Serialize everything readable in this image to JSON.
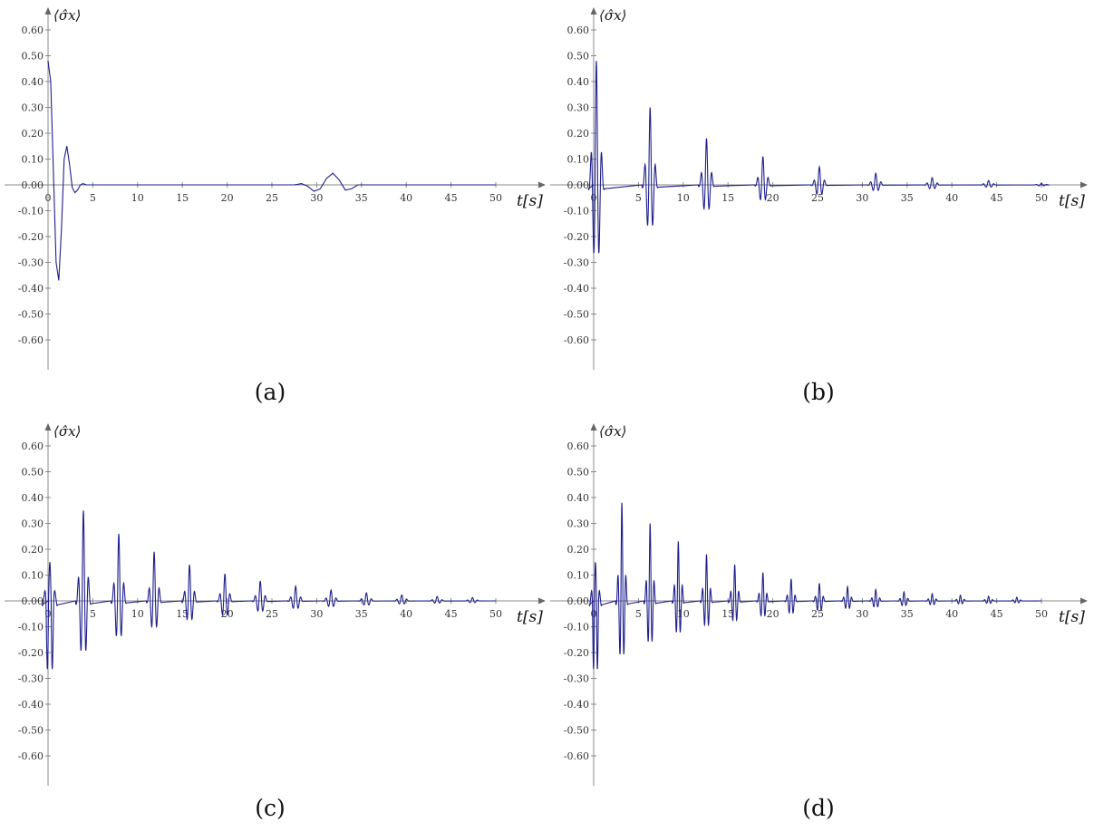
{
  "chart_data": [
    {
      "type": "line",
      "panel_label": "(a)",
      "ylabel": "⟨σ̂x⟩",
      "xlabel": "t[s]",
      "xlim": [
        0,
        50
      ],
      "ylim": [
        -0.7,
        0.7
      ],
      "xticks": [
        "0",
        "5",
        "10",
        "15",
        "20",
        "25",
        "30",
        "35",
        "40",
        "45",
        "50"
      ],
      "yticks": [
        "0.60",
        "0.50",
        "0.40",
        "0.30",
        "0.20",
        "0.10",
        "0.00",
        "-0.10",
        "-0.20",
        "-0.30",
        "-0.40",
        "-0.50",
        "-0.60"
      ],
      "color": "#1f1f8c",
      "series": [
        {
          "x": [
            0,
            0.3,
            0.6,
            0.9,
            1.2,
            1.5,
            1.8,
            2.1,
            2.4,
            2.7,
            3.0,
            3.3,
            3.6,
            3.9,
            4.3,
            5,
            27.5,
            28.3,
            29.0,
            29.7,
            30.4,
            31.1,
            31.8,
            32.5,
            33.2,
            33.9,
            34.6,
            35.2,
            50
          ],
          "y": [
            0.48,
            0.4,
            0.05,
            -0.3,
            -0.37,
            -0.17,
            0.1,
            0.15,
            0.08,
            -0.01,
            -0.03,
            -0.02,
            0.0,
            0.005,
            0.0,
            0.0,
            0.0,
            0.005,
            -0.005,
            -0.025,
            -0.015,
            0.025,
            0.045,
            0.02,
            -0.02,
            -0.015,
            0.0,
            0.0,
            0.0
          ]
        }
      ]
    },
    {
      "type": "line",
      "panel_label": "(b)",
      "ylabel": "⟨σ̂x⟩",
      "xlabel": "t[s]",
      "xlim": [
        0,
        50
      ],
      "ylim": [
        -0.7,
        0.7
      ],
      "xticks": [
        "0",
        "5",
        "10",
        "15",
        "20",
        "25",
        "30",
        "35",
        "40",
        "45",
        "50"
      ],
      "yticks": [
        "0.60",
        "0.50",
        "0.40",
        "0.30",
        "0.20",
        "0.10",
        "0.00",
        "-0.10",
        "-0.20",
        "-0.30",
        "-0.40",
        "-0.50",
        "-0.60"
      ],
      "color": "#1f1f8c",
      "packet_period": 6.3,
      "packets": [
        {
          "center": 0.3,
          "peak": 0.48,
          "trough": -0.37
        },
        {
          "center": 6.3,
          "peak": 0.3,
          "trough": -0.22
        },
        {
          "center": 12.6,
          "peak": 0.18,
          "trough": -0.13
        },
        {
          "center": 18.9,
          "peak": 0.11,
          "trough": -0.08
        },
        {
          "center": 25.2,
          "peak": 0.07,
          "trough": -0.05
        },
        {
          "center": 31.5,
          "peak": 0.045,
          "trough": -0.03
        },
        {
          "center": 37.8,
          "peak": 0.028,
          "trough": -0.02
        },
        {
          "center": 44.1,
          "peak": 0.017,
          "trough": -0.012
        },
        {
          "center": 50.0,
          "peak": 0.006,
          "trough": -0.005
        }
      ]
    },
    {
      "type": "line",
      "panel_label": "(c)",
      "ylabel": "⟨σ̂x⟩",
      "xlabel": "t[s]",
      "xlim": [
        0,
        50
      ],
      "ylim": [
        -0.7,
        0.7
      ],
      "xticks": [
        "0",
        "5",
        "10",
        "15",
        "20",
        "25",
        "30",
        "35",
        "40",
        "45",
        "50"
      ],
      "yticks": [
        "0.60",
        "0.50",
        "0.40",
        "0.30",
        "0.20",
        "0.10",
        "0.00",
        "-0.10",
        "-0.20",
        "-0.30",
        "-0.40",
        "-0.50",
        "-0.60"
      ],
      "color": "#1f1f8c",
      "packet_period": 3.95,
      "packets": [
        {
          "center": 0.2,
          "peak": 0.15,
          "trough": -0.37
        },
        {
          "center": 3.95,
          "peak": 0.35,
          "trough": -0.27
        },
        {
          "center": 7.9,
          "peak": 0.26,
          "trough": -0.19
        },
        {
          "center": 11.85,
          "peak": 0.19,
          "trough": -0.14
        },
        {
          "center": 15.8,
          "peak": 0.14,
          "trough": -0.1
        },
        {
          "center": 19.75,
          "peak": 0.105,
          "trough": -0.075
        },
        {
          "center": 23.7,
          "peak": 0.077,
          "trough": -0.055
        },
        {
          "center": 27.65,
          "peak": 0.057,
          "trough": -0.04
        },
        {
          "center": 31.6,
          "peak": 0.042,
          "trough": -0.03
        },
        {
          "center": 35.55,
          "peak": 0.031,
          "trough": -0.022
        },
        {
          "center": 39.5,
          "peak": 0.023,
          "trough": -0.016
        },
        {
          "center": 43.45,
          "peak": 0.017,
          "trough": -0.012
        },
        {
          "center": 47.4,
          "peak": 0.013,
          "trough": -0.009
        }
      ]
    },
    {
      "type": "line",
      "panel_label": "(d)",
      "ylabel": "⟨σ̂x⟩",
      "xlabel": "t[s]",
      "xlim": [
        0,
        50
      ],
      "ylim": [
        -0.7,
        0.7
      ],
      "xticks": [
        "0",
        "5",
        "10",
        "15",
        "20",
        "25",
        "30",
        "35",
        "40",
        "45",
        "50"
      ],
      "yticks": [
        "0.60",
        "0.50",
        "0.40",
        "0.30",
        "0.20",
        "0.10",
        "0.00",
        "-0.10",
        "-0.20",
        "-0.30",
        "-0.40",
        "-0.50",
        "-0.60"
      ],
      "color": "#1f1f8c",
      "packet_period": 3.15,
      "packets": [
        {
          "center": 0.2,
          "peak": 0.15,
          "trough": -0.37
        },
        {
          "center": 3.15,
          "peak": 0.38,
          "trough": -0.29
        },
        {
          "center": 6.3,
          "peak": 0.3,
          "trough": -0.22
        },
        {
          "center": 9.45,
          "peak": 0.23,
          "trough": -0.17
        },
        {
          "center": 12.6,
          "peak": 0.18,
          "trough": -0.13
        },
        {
          "center": 15.75,
          "peak": 0.14,
          "trough": -0.105
        },
        {
          "center": 18.9,
          "peak": 0.11,
          "trough": -0.08
        },
        {
          "center": 22.05,
          "peak": 0.085,
          "trough": -0.065
        },
        {
          "center": 25.2,
          "peak": 0.068,
          "trough": -0.05
        },
        {
          "center": 28.35,
          "peak": 0.055,
          "trough": -0.04
        },
        {
          "center": 31.5,
          "peak": 0.044,
          "trough": -0.032
        },
        {
          "center": 34.65,
          "peak": 0.035,
          "trough": -0.025
        },
        {
          "center": 37.8,
          "peak": 0.028,
          "trough": -0.02
        },
        {
          "center": 40.95,
          "peak": 0.022,
          "trough": -0.016
        },
        {
          "center": 44.1,
          "peak": 0.018,
          "trough": -0.013
        },
        {
          "center": 47.25,
          "peak": 0.014,
          "trough": -0.01
        }
      ]
    }
  ]
}
